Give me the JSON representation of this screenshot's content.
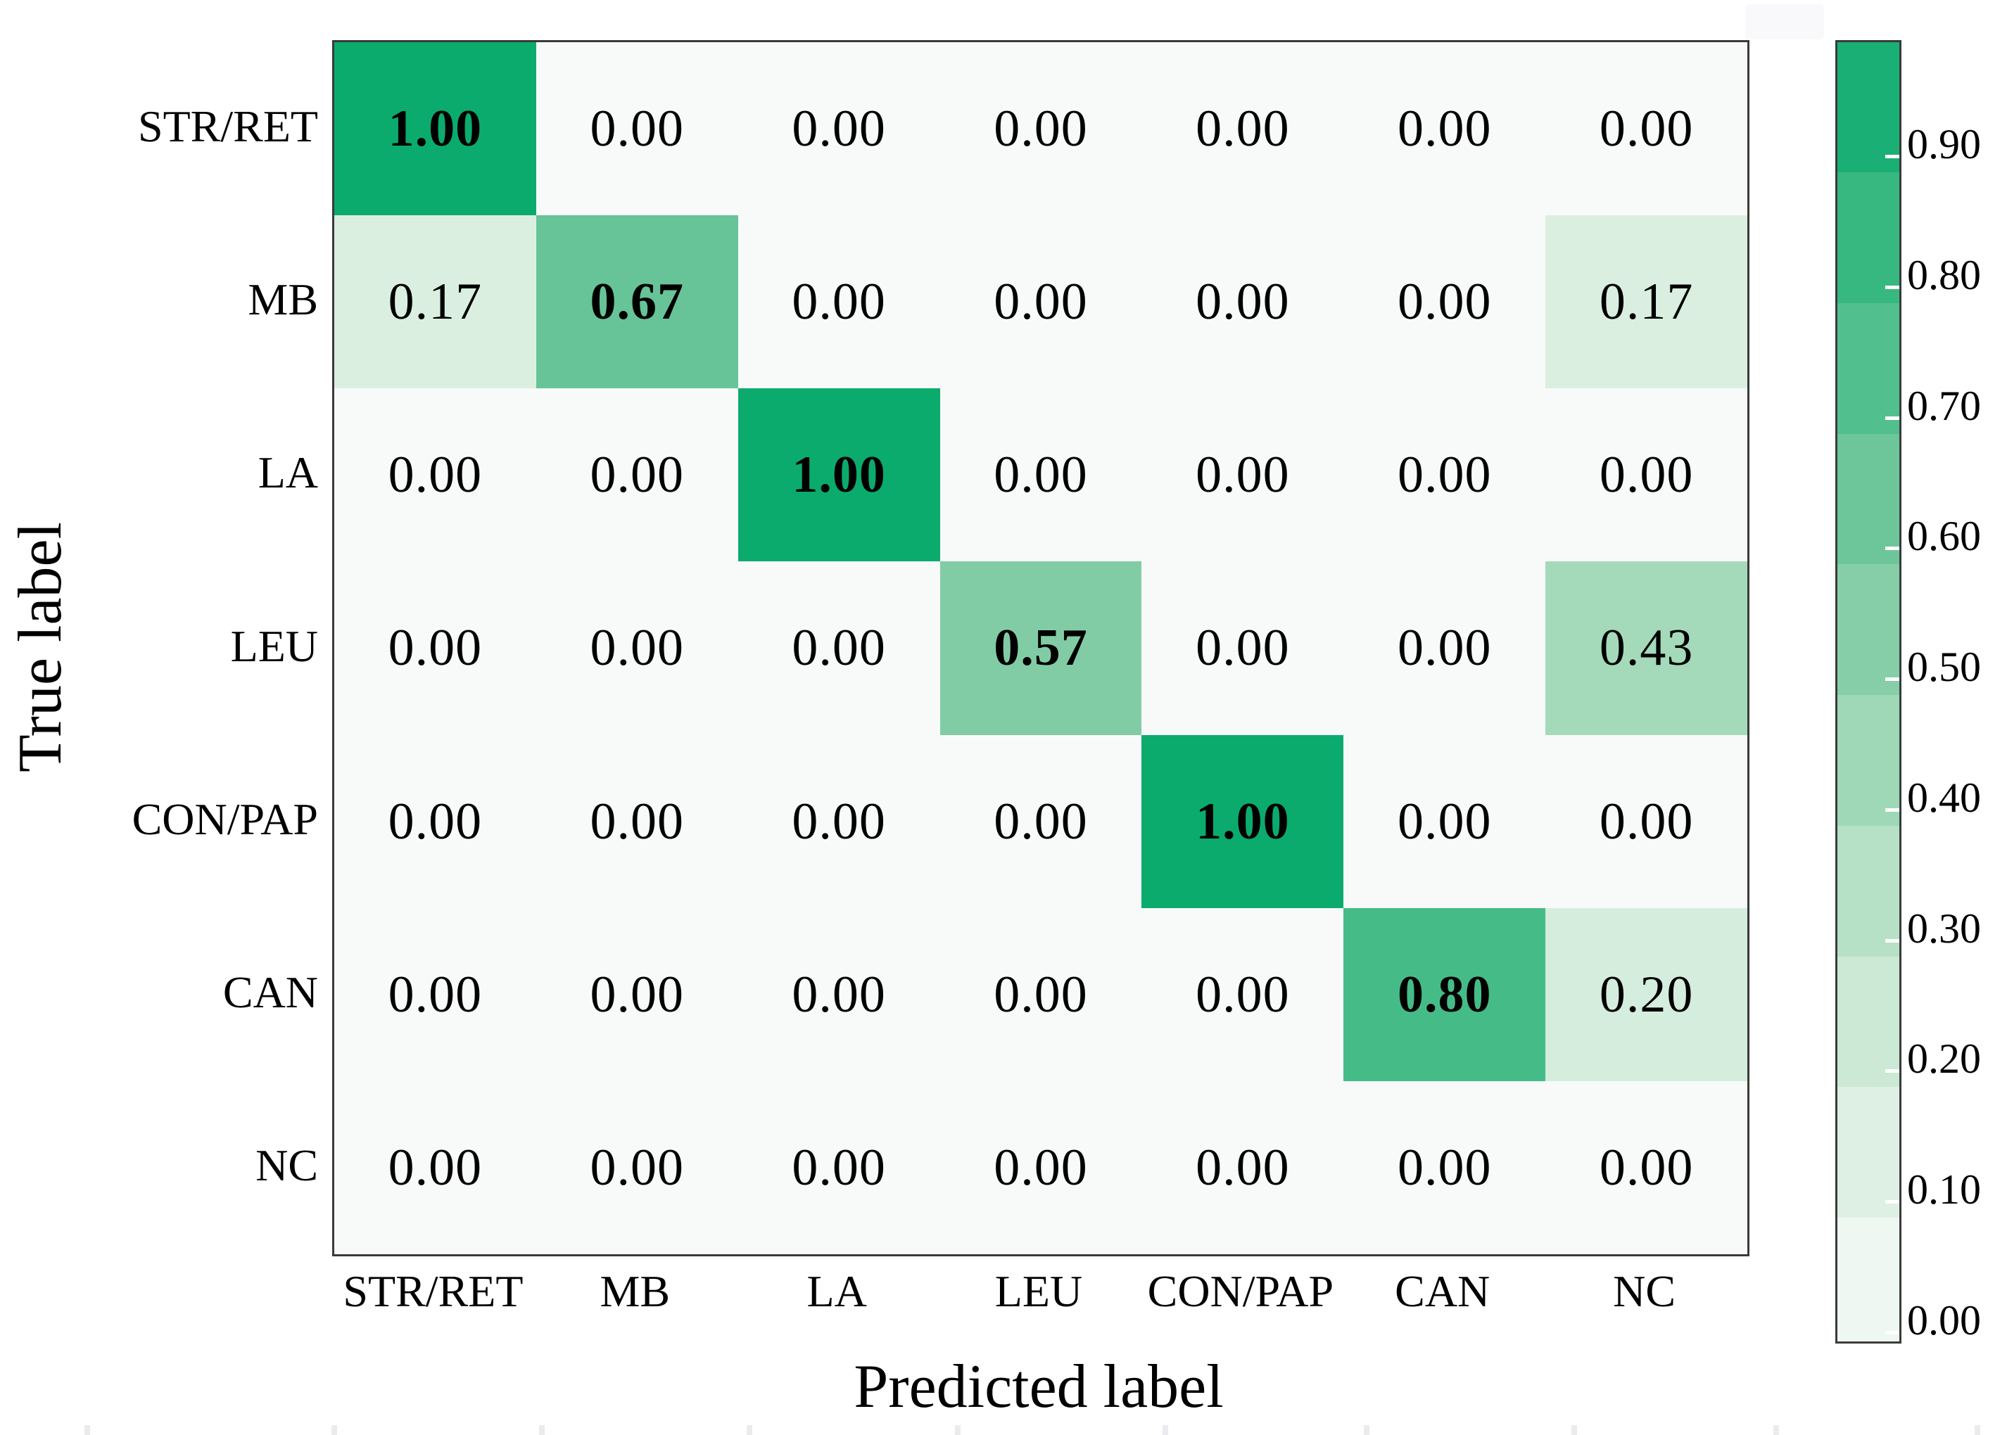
{
  "figure": {
    "xlabel": "Predicted label",
    "ylabel": "True label"
  },
  "chart_data": {
    "type": "heatmap",
    "title": "",
    "xlabel": "Predicted label",
    "ylabel": "True label",
    "x_categories": [
      "STR/RET",
      "MB",
      "LA",
      "LEU",
      "CON/PAP",
      "CAN",
      "NC"
    ],
    "y_categories": [
      "STR/RET",
      "MB",
      "LA",
      "LEU",
      "CON/PAP",
      "CAN",
      "NC"
    ],
    "matrix": [
      [
        1.0,
        0.0,
        0.0,
        0.0,
        0.0,
        0.0,
        0.0
      ],
      [
        0.17,
        0.67,
        0.0,
        0.0,
        0.0,
        0.0,
        0.17
      ],
      [
        0.0,
        0.0,
        1.0,
        0.0,
        0.0,
        0.0,
        0.0
      ],
      [
        0.0,
        0.0,
        0.0,
        0.57,
        0.0,
        0.0,
        0.43
      ],
      [
        0.0,
        0.0,
        0.0,
        0.0,
        1.0,
        0.0,
        0.0
      ],
      [
        0.0,
        0.0,
        0.0,
        0.0,
        0.0,
        0.8,
        0.2
      ],
      [
        0.0,
        0.0,
        0.0,
        0.0,
        0.0,
        0.0,
        0.0
      ]
    ],
    "value_decimals": 2,
    "bold_diagonal_nonzero": true,
    "vmin": 0.0,
    "vmax": 1.0,
    "grid": false,
    "colorbar": {
      "position": "right",
      "tick_labels": [
        "0.90",
        "0.80",
        "0.70",
        "0.60",
        "0.50",
        "0.40",
        "0.30",
        "0.20",
        "0.10",
        "0.00"
      ],
      "tick_values": [
        0.9,
        0.8,
        0.7,
        0.6,
        0.5,
        0.4,
        0.3,
        0.2,
        0.1,
        0.0
      ],
      "discrete_bin_size": 0.1
    },
    "colors": {
      "colormap_anchors": [
        {
          "v": 0.0,
          "color": "#F8FAF9"
        },
        {
          "v": 0.2,
          "color": "#D5EDDC"
        },
        {
          "v": 0.4,
          "color": "#ACDDBF"
        },
        {
          "v": 0.6,
          "color": "#79C9A0"
        },
        {
          "v": 0.8,
          "color": "#45BC88"
        },
        {
          "v": 1.0,
          "color": "#0BAB6D"
        }
      ],
      "plot_border": "#3A3A3A",
      "text": "#000000",
      "background": "#FFFFFF",
      "colorbar_tick_mark": "#FFFFFF"
    }
  }
}
